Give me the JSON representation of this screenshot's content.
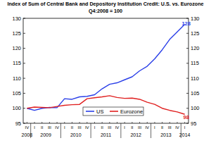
{
  "chart_data": {
    "type": "line",
    "title": "Index of Sum of Central Bank and Depository Institution Credit: U.S. vs. Eurozone",
    "subtitle": "Q4:2008 = 100",
    "categories": [
      "IV",
      "I",
      "II",
      "III",
      "IV",
      "I",
      "II",
      "III",
      "IV",
      "I",
      "II",
      "III",
      "IV",
      "I",
      "II",
      "III",
      "IV",
      "I",
      "II",
      "III",
      "IV",
      "I"
    ],
    "category_groups": [
      "2008",
      "2009",
      "2009",
      "2009",
      "2009",
      "2010",
      "2010",
      "2010",
      "2010",
      "2011",
      "2011",
      "2011",
      "2011",
      "2012",
      "2012",
      "2012",
      "2012",
      "2013",
      "2013",
      "2013",
      "2013",
      "2014"
    ],
    "series": [
      {
        "name": "US",
        "color": "#2a3fe8",
        "values": [
          100,
          99.3,
          100,
          100.3,
          100.2,
          103.2,
          103,
          103.8,
          104,
          104.5,
          106.5,
          108,
          108.5,
          109.5,
          110.5,
          112.5,
          114,
          116.5,
          119.5,
          123,
          125.5,
          128
        ],
        "value_labels": [
          null,
          null,
          null,
          null,
          null,
          null,
          null,
          null,
          null,
          null,
          null,
          null,
          null,
          null,
          null,
          null,
          null,
          null,
          null,
          null,
          null,
          "128"
        ]
      },
      {
        "name": "Eurozone",
        "color": "#e02020",
        "values": [
          100,
          100.4,
          100.3,
          100.2,
          100.6,
          101,
          101.2,
          101.3,
          103.2,
          103.5,
          103.8,
          104.2,
          103.6,
          103.3,
          103.4,
          103,
          102,
          101.3,
          100,
          99.3,
          98.8,
          98
        ],
        "value_labels": [
          null,
          null,
          null,
          null,
          null,
          null,
          null,
          null,
          null,
          null,
          null,
          null,
          null,
          null,
          null,
          null,
          null,
          null,
          null,
          null,
          null,
          "98"
        ]
      }
    ],
    "ylim": [
      95,
      130
    ],
    "yticks": [
      95,
      100,
      105,
      110,
      115,
      120,
      125,
      130
    ],
    "y2lim": [
      95,
      130
    ],
    "y2ticks": [
      95,
      100,
      105,
      110,
      115,
      120,
      125,
      130
    ],
    "grid": false,
    "legend": "bottom"
  }
}
